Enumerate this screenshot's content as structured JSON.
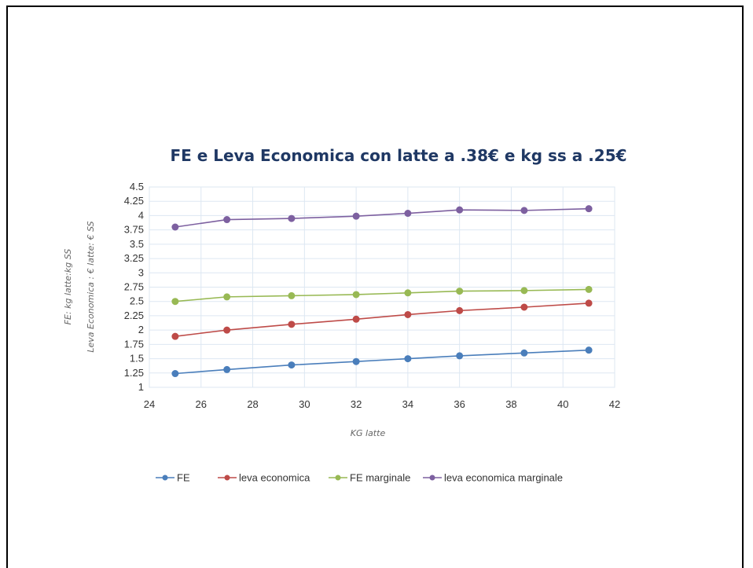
{
  "chart_data": {
    "type": "line",
    "title": "FE e Leva Economica con latte a .38€ e kg ss a .25€",
    "xlabel": "KG latte",
    "ylabel_lines": [
      "FE: kg latte:kg SS",
      "Leva Economica : € latte: € SS"
    ],
    "xlim": [
      24,
      42
    ],
    "ylim": [
      1,
      4.5
    ],
    "x_ticks": [
      "24",
      "26",
      "28",
      "30",
      "32",
      "34",
      "36",
      "38",
      "40",
      "42"
    ],
    "y_ticks": [
      "1",
      "1.25",
      "1.5",
      "1.75",
      "2",
      "2.25",
      "2.5",
      "2.75",
      "3",
      "3.25",
      "3.5",
      "3.75",
      "4",
      "4.25",
      "4.5"
    ],
    "x": [
      25,
      27,
      29.5,
      32,
      34,
      36,
      38.5,
      41
    ],
    "grid": true,
    "legend_position": "bottom",
    "series": [
      {
        "name": "FE",
        "color": "#4a7ebb",
        "values": [
          1.24,
          1.31,
          1.39,
          1.45,
          1.5,
          1.55,
          1.6,
          1.65
        ]
      },
      {
        "name": "leva economica",
        "color": "#be4b48",
        "values": [
          1.89,
          2.0,
          2.1,
          2.19,
          2.27,
          2.34,
          2.4,
          2.47
        ]
      },
      {
        "name": "FE marginale",
        "color": "#98b954",
        "values": [
          2.5,
          2.58,
          2.6,
          2.62,
          2.65,
          2.68,
          2.69,
          2.71
        ]
      },
      {
        "name": "leva economica marginale",
        "color": "#7d60a0",
        "values": [
          3.8,
          3.93,
          3.95,
          3.99,
          4.04,
          4.1,
          4.09,
          4.12
        ]
      }
    ]
  }
}
